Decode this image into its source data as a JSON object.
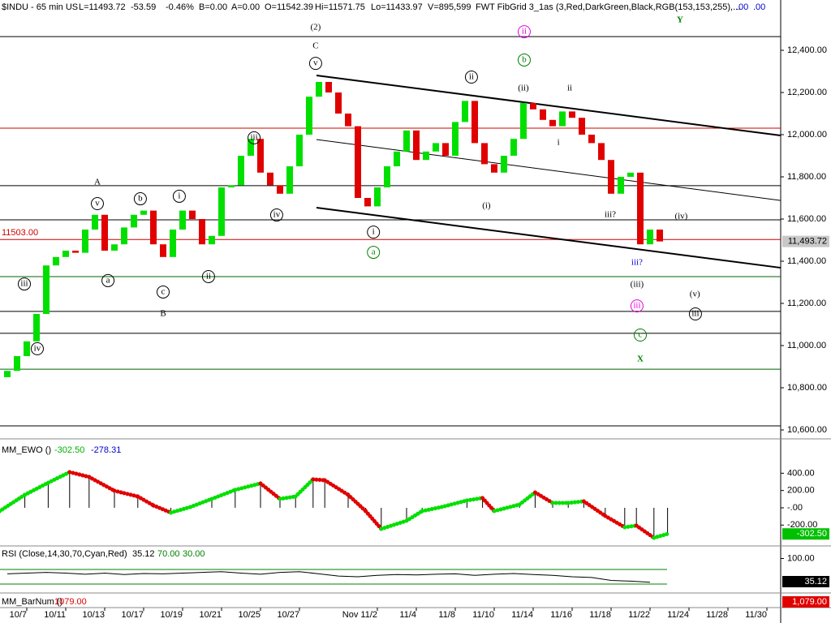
{
  "header": {
    "symbol": "$INDU - 65 min  US",
    "fields": [
      "L=11493.72",
      "-53.59",
      "-0.46%",
      "B=0.00",
      "A=0.00",
      "O=11542.39",
      "Hi=11571.75",
      "Lo=11433.97",
      "V=895,599",
      "FWT FibGrid 3_1as (3,Red,DarkGreen,Black,RGB(153,153,255),..."
    ],
    "extra": [
      ".00",
      ".00"
    ]
  },
  "chart_data": [
    {
      "type": "candlestick",
      "up_color": "#00e000",
      "down_color": "#e00000",
      "x": [
        -1,
        -0.5,
        0,
        0.5,
        1,
        1.5,
        2,
        2.5,
        3,
        3.5,
        4,
        4.5,
        5,
        5.5,
        6,
        6.5,
        7,
        7.5,
        8,
        8.5,
        9,
        9.5,
        10,
        10.5,
        11,
        11.5,
        12,
        12.5,
        13,
        13.5,
        14,
        14.5,
        15,
        15.5,
        16,
        16.5,
        17,
        17.5,
        18,
        18.5,
        19,
        19.5,
        20,
        20.5,
        21,
        21.5,
        22,
        22.5,
        23,
        23.5,
        24,
        24.5,
        25,
        25.5,
        26,
        26.5,
        27,
        27.5,
        28,
        28.5,
        29,
        29.5,
        30,
        30.5,
        31,
        31.5,
        32,
        32.5
      ],
      "open": [
        10850,
        10880,
        10950,
        11020,
        11150,
        11380,
        11420,
        11450,
        11440,
        11550,
        11620,
        11450,
        11480,
        11560,
        11620,
        11640,
        11480,
        11420,
        11550,
        11640,
        11600,
        11480,
        11520,
        11750,
        11760,
        11900,
        11980,
        11820,
        11760,
        11720,
        11850,
        12000,
        12180,
        12250,
        12200,
        12100,
        12040,
        11700,
        11660,
        11750,
        11850,
        11920,
        12020,
        11880,
        11920,
        11960,
        11900,
        12060,
        12160,
        11960,
        11860,
        11820,
        11900,
        11980,
        12150,
        12120,
        12070,
        12040,
        12110,
        12080,
        12000,
        11960,
        11880,
        11720,
        11800,
        11820,
        11480,
        11550
      ],
      "close": [
        10880,
        10950,
        11020,
        11150,
        11380,
        11420,
        11450,
        11440,
        11550,
        11620,
        11450,
        11480,
        11560,
        11620,
        11640,
        11480,
        11420,
        11550,
        11640,
        11600,
        11480,
        11520,
        11750,
        11760,
        11900,
        11980,
        11820,
        11760,
        11720,
        11850,
        12000,
        12180,
        12250,
        12200,
        12100,
        12040,
        11700,
        11660,
        11750,
        11850,
        11920,
        12020,
        11880,
        11920,
        11960,
        11900,
        12060,
        12160,
        11960,
        11860,
        11820,
        11900,
        11980,
        12150,
        12120,
        12070,
        12040,
        12110,
        12080,
        12000,
        11960,
        11880,
        11720,
        11800,
        11820,
        11480,
        11550,
        11493.72
      ],
      "xlim": [
        -1.375,
        38.708
      ],
      "ylim": [
        10561.5,
        12638.5
      ],
      "yticks": [
        {
          "value": 12400,
          "label": "12,400.00"
        },
        {
          "value": 12200,
          "label": "12,200.00"
        },
        {
          "value": 12000,
          "label": "12,000.00"
        },
        {
          "value": 11800,
          "label": "11,800.00"
        },
        {
          "value": 11600,
          "label": "11,600.00"
        },
        {
          "value": 11400,
          "label": "11,400.00"
        },
        {
          "value": 11200,
          "label": "11,200.00"
        },
        {
          "value": 11000,
          "label": "11,000.00"
        },
        {
          "value": 10800,
          "label": "10,800.00"
        },
        {
          "value": 10600,
          "label": "10,600.00"
        }
      ],
      "xticks": [
        {
          "value": 0,
          "label": "10/7"
        },
        {
          "value": 2,
          "label": "10/11"
        },
        {
          "value": 4,
          "label": "10/13"
        },
        {
          "value": 6,
          "label": "10/17"
        },
        {
          "value": 8,
          "label": "10/19"
        },
        {
          "value": 10,
          "label": "10/21"
        },
        {
          "value": 12,
          "label": "10/25"
        },
        {
          "value": 14,
          "label": "10/27"
        },
        {
          "value": 18,
          "label": "Nov  11/2"
        },
        {
          "value": 20,
          "label": "11/4"
        },
        {
          "value": 22,
          "label": "11/8"
        },
        {
          "value": 24,
          "label": "11/10"
        },
        {
          "value": 26,
          "label": "11/14"
        },
        {
          "value": 28,
          "label": "11/16"
        },
        {
          "value": 30,
          "label": "11/18"
        },
        {
          "value": 32,
          "label": "11/22"
        },
        {
          "value": 34,
          "label": "11/24"
        },
        {
          "value": 36,
          "label": "11/28"
        },
        {
          "value": 38,
          "label": "11/30"
        }
      ],
      "levels": [
        {
          "value": 12465,
          "color": "#000000"
        },
        {
          "value": 12031,
          "color": "#d00000"
        },
        {
          "value": 11758,
          "color": "#000000"
        },
        {
          "value": 11596,
          "color": "#000000"
        },
        {
          "value": 11503,
          "color": "#d00000",
          "label": "11503.00"
        },
        {
          "value": 11327,
          "color": "#006400"
        },
        {
          "value": 11162,
          "color": "#000000"
        },
        {
          "value": 11058,
          "color": "#000000"
        },
        {
          "value": 10888,
          "color": "#006400"
        },
        {
          "value": 10619,
          "color": "#000000"
        }
      ],
      "trendlines": [
        {
          "x": [
            14.875,
            38.708
          ],
          "values": [
            12281,
            11996
          ],
          "width": 2
        },
        {
          "x": [
            14.875,
            38.708
          ],
          "values": [
            11977,
            11688
          ],
          "width": 1
        },
        {
          "x": [
            14.875,
            38.708
          ],
          "values": [
            11654,
            11369
          ],
          "width": 2
        }
      ],
      "last": {
        "value": 11493.72,
        "label": "11,493.72"
      },
      "annotations": [
        {
          "text": "(2)",
          "x": 14.83,
          "y": 12508,
          "color": "#000000"
        },
        {
          "text": "C",
          "x": 14.83,
          "y": 12419,
          "color": "#000000"
        },
        {
          "text": "v",
          "x": 14.83,
          "y": 12338,
          "color": "#000000",
          "circled": true
        },
        {
          "text": "A",
          "x": 3.625,
          "y": 11773,
          "color": "#000000"
        },
        {
          "text": "v",
          "x": 3.625,
          "y": 11673,
          "color": "#000000",
          "circled": true
        },
        {
          "text": "b",
          "x": 5.83,
          "y": 11696,
          "color": "#000000",
          "circled": true
        },
        {
          "text": "i",
          "x": 7.83,
          "y": 11708,
          "color": "#000000",
          "circled": true
        },
        {
          "text": "iii",
          "x": 11.67,
          "y": 11985,
          "color": "#000000",
          "circled": true
        },
        {
          "text": "iv",
          "x": 12.83,
          "y": 11619,
          "color": "#000000",
          "circled": true
        },
        {
          "text": "ii",
          "x": 9.33,
          "y": 11327,
          "color": "#000000",
          "circled": true
        },
        {
          "text": "a",
          "x": 4.17,
          "y": 11308,
          "color": "#000000",
          "circled": true
        },
        {
          "text": "c",
          "x": 7,
          "y": 11254,
          "color": "#000000",
          "circled": true
        },
        {
          "text": "B",
          "x": 7,
          "y": 11150,
          "color": "#000000"
        },
        {
          "text": "iii",
          "x": -0.125,
          "y": 11292,
          "color": "#000000",
          "circled": true
        },
        {
          "text": "iv",
          "x": 0.54,
          "y": 10985,
          "color": "#000000",
          "circled": true
        },
        {
          "text": "ii",
          "x": 22.83,
          "y": 12273,
          "color": "#000000",
          "circled": true
        },
        {
          "text": "(ii)",
          "x": 25.5,
          "y": 12219,
          "color": "#000000"
        },
        {
          "text": "ii",
          "x": 27.875,
          "y": 12219,
          "color": "#000000"
        },
        {
          "text": "i",
          "x": 27.3,
          "y": 11962,
          "color": "#000000"
        },
        {
          "text": "(i)",
          "x": 23.6,
          "y": 11662,
          "color": "#000000"
        },
        {
          "text": "i",
          "x": 17.8,
          "y": 11538,
          "color": "#000000",
          "circled": true
        },
        {
          "text": "a",
          "x": 17.8,
          "y": 11442,
          "color": "#008000",
          "circled": true
        },
        {
          "text": "ii",
          "x": 25.54,
          "y": 12488,
          "color": "#e000e0",
          "circled": true
        },
        {
          "text": "b",
          "x": 25.54,
          "y": 12354,
          "color": "#008000",
          "circled": true
        },
        {
          "text": "Y",
          "x": 33.54,
          "y": 12542,
          "color": "#008000"
        },
        {
          "text": "iii?",
          "x": 29.96,
          "y": 11619,
          "color": "#000000"
        },
        {
          "text": "(iv)",
          "x": 33.6,
          "y": 11612,
          "color": "#000000"
        },
        {
          "text": "iii?",
          "x": 31.33,
          "y": 11392,
          "color": "#0000cc"
        },
        {
          "text": "(iii)",
          "x": 31.33,
          "y": 11288,
          "color": "#000000"
        },
        {
          "text": "(v)",
          "x": 34.3,
          "y": 11242,
          "color": "#000000"
        },
        {
          "text": "iii",
          "x": 31.33,
          "y": 11188,
          "color": "#e000e0",
          "circled": true
        },
        {
          "text": "iii",
          "x": 34.33,
          "y": 11150,
          "color": "#000000",
          "circled": true
        },
        {
          "text": "c",
          "x": 31.5,
          "y": 11050,
          "color": "#008000",
          "circled": true
        },
        {
          "text": "X",
          "x": 31.5,
          "y": 10935,
          "color": "#008000"
        }
      ]
    },
    {
      "type": "oscillator",
      "title": "MM_EWO ()",
      "readouts": [
        {
          "label": "-302.50",
          "color": "#00b000"
        },
        {
          "label": "-278.31",
          "color": "#0000cc"
        }
      ],
      "up_color": "#00e000",
      "down_color": "#e00000",
      "x": [
        -1.4,
        -0.1,
        1.1,
        2.2,
        3.2,
        4.5,
        5.7,
        6.5,
        7.4,
        8.4,
        9.5,
        10.7,
        12,
        13,
        13.8,
        14.7,
        15.3,
        16.5,
        17.4,
        18.2,
        19.5,
        20.3,
        21.3,
        22.6,
        23.4,
        24,
        25.3,
        26.1,
        27,
        27.8,
        28.6,
        29.7,
        30.7,
        31.3,
        32.2,
        32.9
      ],
      "values": [
        -40,
        150,
        290,
        413,
        357,
        197,
        131,
        28,
        -56,
        9,
        103,
        207,
        282,
        103,
        131,
        329,
        319,
        150,
        -38,
        -244,
        -150,
        -38,
        9,
        85,
        113,
        -38,
        38,
        178,
        56,
        56,
        75,
        -94,
        -225,
        -206,
        -347,
        -302.5
      ],
      "ylim": [
        -432,
        760
      ],
      "yticks": [
        {
          "value": 400,
          "label": "400.00"
        },
        {
          "value": 200,
          "label": "200.00"
        },
        {
          "value": 0,
          "label": "-.00"
        },
        {
          "value": -200,
          "label": "-200.00"
        }
      ],
      "last": {
        "value": -302.5,
        "label": "-302.50"
      }
    },
    {
      "type": "line",
      "title": "RSI (Close,14,30,70,Cyan,Red)",
      "readouts": [
        {
          "label": "35.12",
          "color": "#000000"
        },
        {
          "label": "70.00",
          "color": "#008000"
        },
        {
          "label": "30.00",
          "color": "#008000"
        }
      ],
      "x": [
        -1,
        0,
        1,
        2,
        3,
        4,
        5,
        6,
        7,
        8,
        9,
        10,
        11,
        12,
        13,
        14,
        15,
        16,
        17,
        18,
        19,
        20,
        21,
        22,
        23,
        24,
        25,
        26,
        27,
        28,
        29,
        30,
        31,
        32
      ],
      "values": [
        58,
        60,
        62,
        60,
        57,
        60,
        56,
        59,
        58,
        60,
        62,
        64,
        60,
        57,
        62,
        64,
        58,
        52,
        50,
        54,
        56,
        55,
        57,
        58,
        54,
        57,
        59,
        56,
        54,
        50,
        48,
        40,
        38,
        35.12
      ],
      "levels": [
        70,
        30
      ],
      "ylim": [
        7.8,
        127.8
      ],
      "yticks": [
        {
          "value": 100,
          "label": "100.00"
        }
      ],
      "last": {
        "value": 35.12,
        "label": "35.12"
      }
    },
    {
      "type": "counter",
      "title": "MM_BarNum ()",
      "readouts": [
        {
          "label": "1079.00",
          "color": "#e00000"
        }
      ],
      "value": 1079,
      "last": {
        "value": 1079,
        "label": "1,079.00"
      }
    }
  ]
}
